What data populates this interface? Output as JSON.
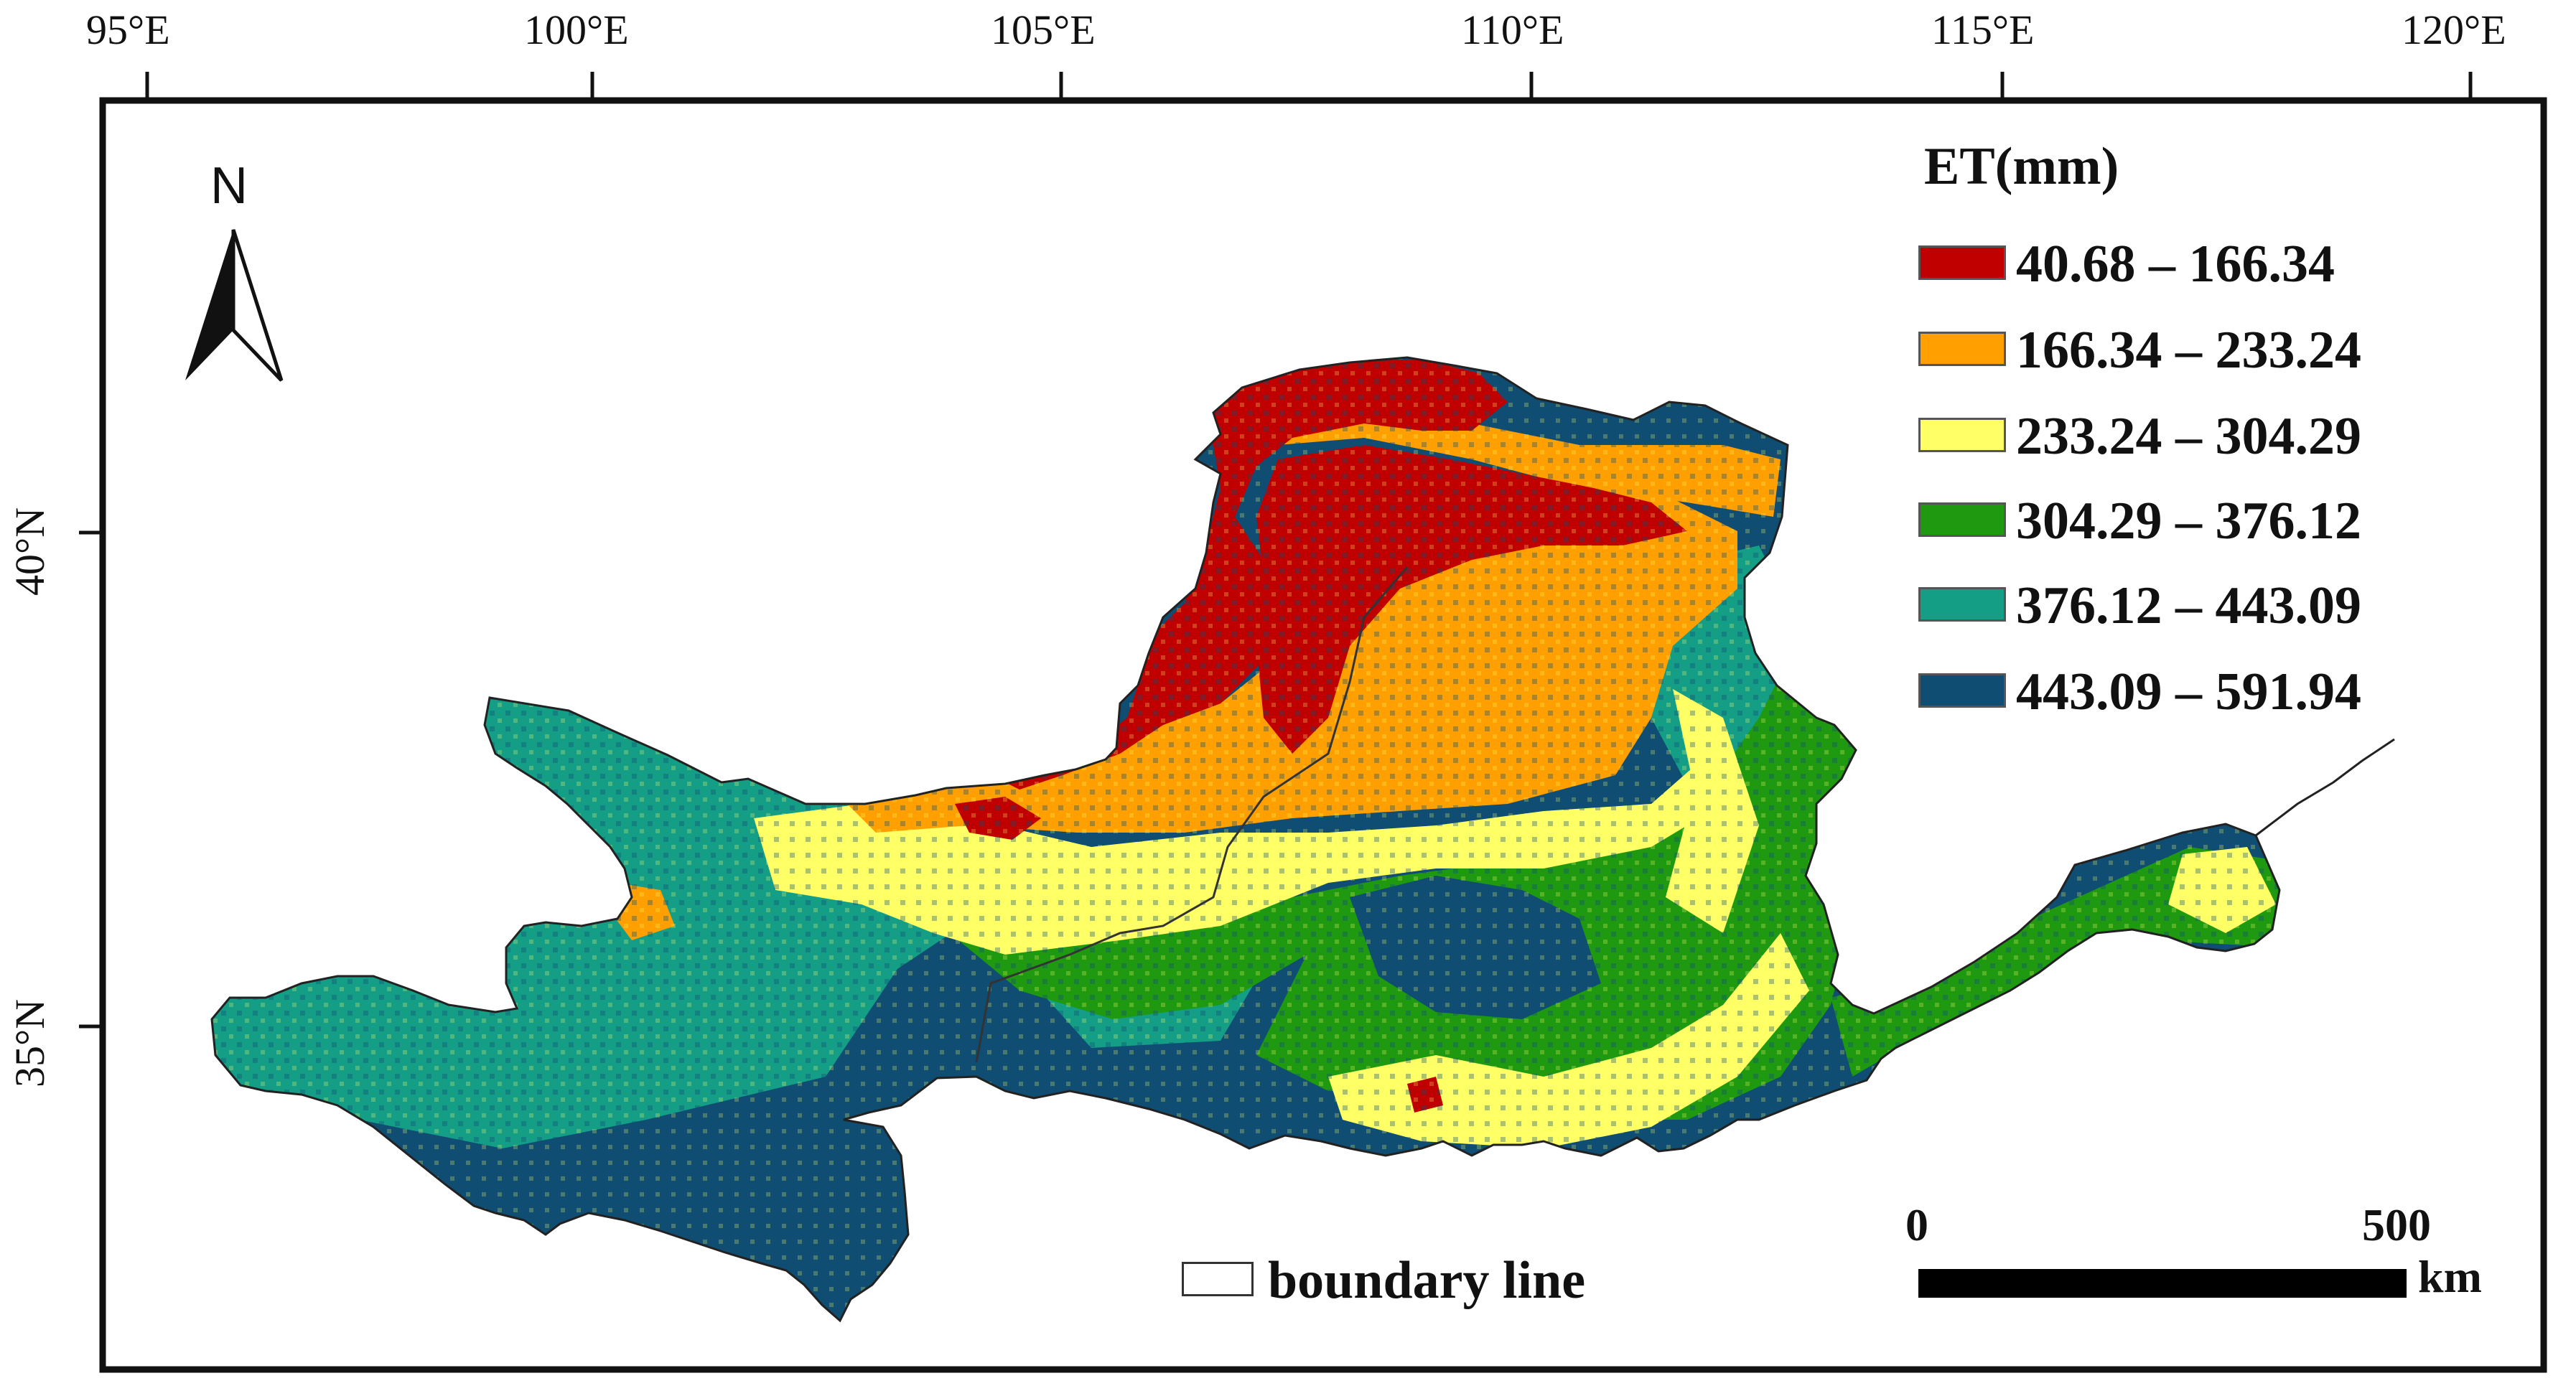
{
  "map": {
    "longitude_labels": [
      "95°E",
      "100°E",
      "105°E",
      "110°E",
      "115°E",
      "120°E"
    ],
    "latitude_labels": [
      "40°N",
      "35°N"
    ],
    "north_arrow_label": "N",
    "legend": {
      "title": "ET(mm)",
      "classes": [
        {
          "label": "40.68 – 166.34",
          "color": "#c00000"
        },
        {
          "label": "166.34 – 233.24",
          "color": "#ff9f00"
        },
        {
          "label": "233.24 – 304.29",
          "color": "#ffff66"
        },
        {
          "label": "304.29 – 376.12",
          "color": "#1f9a10"
        },
        {
          "label": "376.12 – 443.09",
          "color": "#139e85"
        },
        {
          "label": "443.09 – 591.94",
          "color": "#0f4d72"
        }
      ]
    },
    "boundary_label": "boundary line",
    "scale_bar": {
      "start": "0",
      "end": "500",
      "unit": "km"
    }
  }
}
